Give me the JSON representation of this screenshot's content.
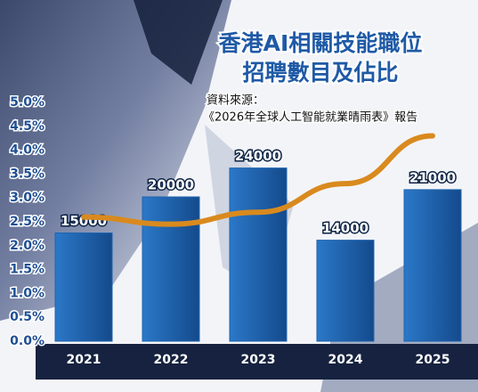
{
  "chart_data": {
    "type": "bar",
    "title": "香港AI相關技能職位",
    "subtitle": "招聘數目及佔比",
    "source_label": "資料來源：",
    "source": "《2026年全球人工智能就業晴雨表》報告",
    "categories": [
      "2021",
      "2022",
      "2023",
      "2024",
      "2025"
    ],
    "series": [
      {
        "type": "bar",
        "color": "#1e64b0",
        "values": [
          15000,
          20000,
          24000,
          14000,
          21000
        ]
      },
      {
        "type": "line",
        "color": "#d98a1e",
        "values": [
          2.6,
          2.45,
          2.7,
          3.3,
          4.3
        ]
      }
    ],
    "ylim": [
      0,
      5
    ],
    "yticks": [
      {
        "value": 0,
        "label": "0.0%"
      },
      {
        "value": 0.5,
        "label": "0.5%"
      },
      {
        "value": 1,
        "label": "1.0%"
      },
      {
        "value": 1.5,
        "label": "1.5%"
      },
      {
        "value": 2,
        "label": "2.0%"
      },
      {
        "value": 2.5,
        "label": "2.5%"
      },
      {
        "value": 3,
        "label": "3.0%"
      },
      {
        "value": 3.5,
        "label": "3.5%"
      },
      {
        "value": 4,
        "label": "4.0%"
      },
      {
        "value": 4.5,
        "label": "4.5%"
      },
      {
        "value": 5,
        "label": "5.0%"
      }
    ]
  }
}
